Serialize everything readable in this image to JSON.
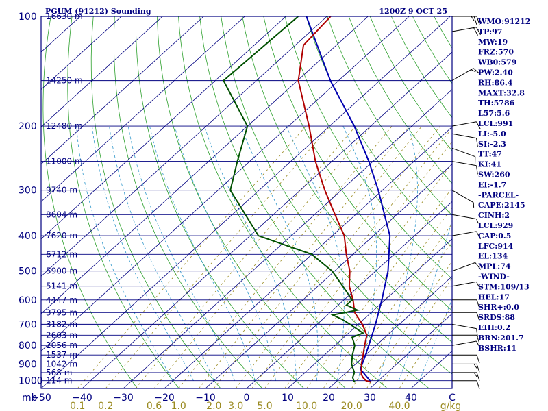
{
  "header": {
    "station": "PGUM (91212) Sounding",
    "time": "1200Z  9 OCT 25"
  },
  "indices": [
    "WMO:91212",
    "TP:97",
    "MW:19",
    "FRZ:570",
    "WB0:579",
    "PW:2.40",
    "RH:86.4",
    "MAXT:32.8",
    "TH:5786",
    "L57:5.6",
    "LCL:991",
    "LI:-5.0",
    "SI:-2.3",
    "TT:47",
    "KI:41",
    "SW:260",
    "EI:-1.7",
    "-PARCEL-",
    "CAPE:2145",
    "CINH:2",
    "LCL:929",
    "CAP:0.5",
    "LFC:914",
    "EL:134",
    "MPL:74",
    "-WIND-",
    "STM:109/13",
    "HEL:17",
    "SHR+:0.0",
    "SRDS:88",
    "EHI:0.2",
    "BRN:201.7",
    "BSHR:11"
  ],
  "chart_data": {
    "type": "line",
    "chart_kind": "Skew-T log-P sounding",
    "colors": {
      "frame": "#000080",
      "isobar": "#000080",
      "isotherm": "#000080",
      "dry_adiabat": "#2ca02c",
      "moist_adiabat": "#3399cc",
      "mixing_ratio": "#9a8a20",
      "temperature": "#b00000",
      "dewpoint": "#005000",
      "parcel": "#0000b0",
      "wind": "#000000"
    },
    "pressure_axis": {
      "unit_label": "mb",
      "ticks": [
        100,
        200,
        300,
        400,
        500,
        600,
        700,
        800,
        900,
        1000
      ]
    },
    "temperature_axis": {
      "unit": "°C",
      "tick_labels": [
        "−50",
        "−40",
        "−30",
        "−20",
        "−10",
        "0",
        "10",
        "20",
        "30",
        "40",
        "C"
      ],
      "tick_values": [
        -50,
        -40,
        -30,
        -20,
        -10,
        0,
        10,
        20,
        30,
        40,
        50
      ]
    },
    "mixing_ratio_axis": {
      "unit": "g/kg",
      "ticks": [
        {
          "label": "0.1",
          "value": 0.1
        },
        {
          "label": "0.2",
          "value": 0.2
        },
        {
          "label": "0.6",
          "value": 0.6
        },
        {
          "label": "1.0",
          "value": 1.0
        },
        {
          "label": "2.0",
          "value": 2.0
        },
        {
          "label": "3.0",
          "value": 3.0
        },
        {
          "label": "5.0",
          "value": 5.0
        },
        {
          "label": "10.0",
          "value": 10.0
        },
        {
          "label": "20.0",
          "value": 20.0
        },
        {
          "label": "40.0",
          "value": 40.0
        }
      ]
    },
    "height_labels": [
      {
        "p": 100,
        "label": "16630 m"
      },
      {
        "p": 150,
        "label": "14250 m"
      },
      {
        "p": 200,
        "label": "12480 m"
      },
      {
        "p": 250,
        "label": "11000 m"
      },
      {
        "p": 300,
        "label": "9740 m"
      },
      {
        "p": 350,
        "label": "8604 m"
      },
      {
        "p": 400,
        "label": "7620 m"
      },
      {
        "p": 450,
        "label": "6712 m"
      },
      {
        "p": 500,
        "label": "5900 m"
      },
      {
        "p": 550,
        "label": "5141 m"
      },
      {
        "p": 600,
        "label": "4447 m"
      },
      {
        "p": 650,
        "label": "3795 m"
      },
      {
        "p": 700,
        "label": "3182 m"
      },
      {
        "p": 750,
        "label": "2603 m"
      },
      {
        "p": 800,
        "label": "2056 m"
      },
      {
        "p": 850,
        "label": "1537 m"
      },
      {
        "p": 900,
        "label": "1042 m"
      },
      {
        "p": 950,
        "label": "568 m"
      },
      {
        "p": 1000,
        "label": "114 m"
      }
    ],
    "temperature_profile": [
      {
        "p": 1009,
        "t": 28.6
      },
      {
        "p": 1000,
        "t": 27.0
      },
      {
        "p": 980,
        "t": 25.4
      },
      {
        "p": 960,
        "t": 24.1
      },
      {
        "p": 925,
        "t": 22.6
      },
      {
        "p": 900,
        "t": 21.4
      },
      {
        "p": 850,
        "t": 19.4
      },
      {
        "p": 800,
        "t": 17.2
      },
      {
        "p": 750,
        "t": 15.0
      },
      {
        "p": 700,
        "t": 11.0
      },
      {
        "p": 650,
        "t": 6.0
      },
      {
        "p": 600,
        "t": 2.2
      },
      {
        "p": 550,
        "t": -2.4
      },
      {
        "p": 500,
        "t": -6.3
      },
      {
        "p": 450,
        "t": -11.6
      },
      {
        "p": 400,
        "t": -17.1
      },
      {
        "p": 350,
        "t": -25.0
      },
      {
        "p": 300,
        "t": -34.0
      },
      {
        "p": 250,
        "t": -44.0
      },
      {
        "p": 200,
        "t": -55.0
      },
      {
        "p": 150,
        "t": -69.8
      },
      {
        "p": 120,
        "t": -78.0
      },
      {
        "p": 100,
        "t": -79.1
      }
    ],
    "dewpoint_profile": [
      {
        "p": 1009,
        "td": 24.7
      },
      {
        "p": 1000,
        "td": 24.0
      },
      {
        "p": 980,
        "td": 22.9
      },
      {
        "p": 950,
        "td": 22.0
      },
      {
        "p": 900,
        "td": 19.0
      },
      {
        "p": 850,
        "td": 16.8
      },
      {
        "p": 800,
        "td": 14.8
      },
      {
        "p": 760,
        "td": 12.0
      },
      {
        "p": 740,
        "td": 13.5
      },
      {
        "p": 700,
        "td": 8.0
      },
      {
        "p": 680,
        "td": 5.0
      },
      {
        "p": 660,
        "td": 1.3
      },
      {
        "p": 640,
        "td": 6.0
      },
      {
        "p": 620,
        "td": 2.0
      },
      {
        "p": 600,
        "td": 2.0
      },
      {
        "p": 550,
        "td": -4.0
      },
      {
        "p": 500,
        "td": -10.6
      },
      {
        "p": 450,
        "td": -20.0
      },
      {
        "p": 400,
        "td": -38.0
      },
      {
        "p": 300,
        "td": -57.0
      },
      {
        "p": 250,
        "td": -63.0
      },
      {
        "p": 200,
        "td": -70.0
      },
      {
        "p": 150,
        "td": -88.0
      },
      {
        "p": 100,
        "td": -87.0
      }
    ],
    "parcel_profile": [
      {
        "p": 1009,
        "t": 28.6
      },
      {
        "p": 929,
        "t": 22.5
      },
      {
        "p": 900,
        "t": 21.6
      },
      {
        "p": 850,
        "t": 20.0
      },
      {
        "p": 800,
        "t": 18.2
      },
      {
        "p": 700,
        "t": 14.2
      },
      {
        "p": 600,
        "t": 9.2
      },
      {
        "p": 500,
        "t": 3.0
      },
      {
        "p": 400,
        "t": -6.0
      },
      {
        "p": 300,
        "t": -21.0
      },
      {
        "p": 250,
        "t": -31.0
      },
      {
        "p": 200,
        "t": -44.0
      },
      {
        "p": 150,
        "t": -62.0
      },
      {
        "p": 100,
        "t": -85.0
      }
    ],
    "wind_profile": [
      {
        "p": 100,
        "dir": 90,
        "kt": 25
      },
      {
        "p": 110,
        "dir": 80,
        "kt": 20
      },
      {
        "p": 150,
        "dir": 60,
        "kt": 15
      },
      {
        "p": 200,
        "dir": 80,
        "kt": 10
      },
      {
        "p": 210,
        "dir": 100,
        "kt": 10
      },
      {
        "p": 230,
        "dir": 110,
        "kt": 10
      },
      {
        "p": 250,
        "dir": 100,
        "kt": 10
      },
      {
        "p": 300,
        "dir": 120,
        "kt": 5
      },
      {
        "p": 350,
        "dir": 100,
        "kt": 5
      },
      {
        "p": 400,
        "dir": 80,
        "kt": 10
      },
      {
        "p": 500,
        "dir": 70,
        "kt": 10
      },
      {
        "p": 550,
        "dir": 80,
        "kt": 10
      },
      {
        "p": 600,
        "dir": 90,
        "kt": 10
      },
      {
        "p": 650,
        "dir": 90,
        "kt": 10
      },
      {
        "p": 700,
        "dir": 100,
        "kt": 10
      },
      {
        "p": 750,
        "dir": 90,
        "kt": 10
      },
      {
        "p": 800,
        "dir": 80,
        "kt": 10
      },
      {
        "p": 850,
        "dir": 90,
        "kt": 10
      },
      {
        "p": 900,
        "dir": 90,
        "kt": 15
      },
      {
        "p": 950,
        "dir": 90,
        "kt": 15
      },
      {
        "p": 1000,
        "dir": 90,
        "kt": 10
      }
    ]
  }
}
